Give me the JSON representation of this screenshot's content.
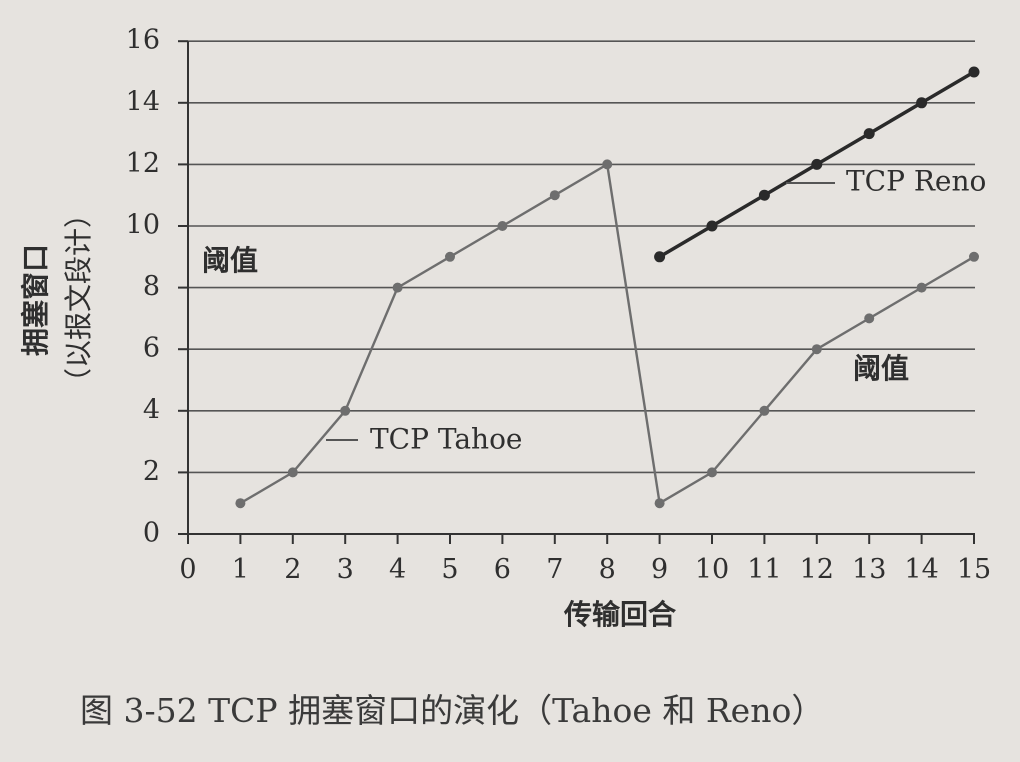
{
  "chart_data": {
    "type": "line",
    "title": "",
    "caption": "图 3-52   TCP 拥塞窗口的演化（Tahoe 和 Reno）",
    "xlabel": "传输回合",
    "ylabel_line1": "拥塞窗口",
    "ylabel_line2": "（以报文段计）",
    "xlim": [
      0,
      15
    ],
    "ylim": [
      0,
      16
    ],
    "xticks": [
      0,
      1,
      2,
      3,
      4,
      5,
      6,
      7,
      8,
      9,
      10,
      11,
      12,
      13,
      14,
      15
    ],
    "yticks": [
      0,
      2,
      4,
      6,
      8,
      10,
      12,
      14,
      16
    ],
    "grid": true,
    "series": [
      {
        "name": "TCP Tahoe",
        "color": "#6e6e6e",
        "points": [
          [
            1,
            1
          ],
          [
            2,
            2
          ],
          [
            3,
            4
          ],
          [
            4,
            8
          ],
          [
            5,
            9
          ],
          [
            6,
            10
          ],
          [
            7,
            11
          ],
          [
            8,
            12
          ],
          [
            9,
            1
          ],
          [
            10,
            2
          ],
          [
            11,
            4
          ],
          [
            12,
            6
          ],
          [
            13,
            7
          ],
          [
            14,
            8
          ],
          [
            15,
            9
          ]
        ]
      },
      {
        "name": "TCP Reno",
        "color": "#2a2a2a",
        "points": [
          [
            9,
            9
          ],
          [
            10,
            10
          ],
          [
            11,
            11
          ],
          [
            12,
            12
          ],
          [
            13,
            13
          ],
          [
            14,
            14
          ],
          [
            15,
            15
          ]
        ]
      }
    ],
    "annotations": [
      {
        "text": "阈值",
        "refers_to": "threshold 8"
      },
      {
        "text": "阈值",
        "refers_to": "threshold 6"
      }
    ]
  }
}
